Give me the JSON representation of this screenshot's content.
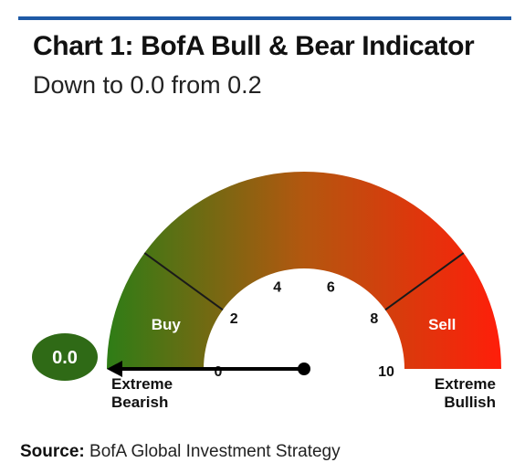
{
  "header": {
    "title": "Chart 1: BofA Bull & Bear Indicator",
    "subtitle": "Down to 0.0 from 0.2"
  },
  "footer": {
    "source_label": "Source:",
    "source_text": "BofA Global Investment Strategy"
  },
  "colors": {
    "rule": "#1f5aa6",
    "bearish": "#2e7d16",
    "mid": "#b3570f",
    "bullish": "#ff1e0a",
    "needle": "#000000",
    "value_badge": "#2f6a16"
  },
  "chart_data": {
    "type": "gauge",
    "value": 0.0,
    "value_label": "0.0",
    "range": [
      0,
      10
    ],
    "ticks": [
      {
        "value": 0,
        "label": "0"
      },
      {
        "value": 2,
        "label": "2"
      },
      {
        "value": 4,
        "label": "4"
      },
      {
        "value": 6,
        "label": "6"
      },
      {
        "value": 8,
        "label": "8"
      },
      {
        "value": 10,
        "label": "10"
      }
    ],
    "zones": [
      {
        "name": "Buy",
        "from": 0,
        "to": 2
      },
      {
        "name": "Sell",
        "from": 8,
        "to": 10
      }
    ],
    "end_labels": {
      "low": [
        "Extreme",
        "Bearish"
      ],
      "high": [
        "Extreme",
        "Bullish"
      ]
    }
  }
}
